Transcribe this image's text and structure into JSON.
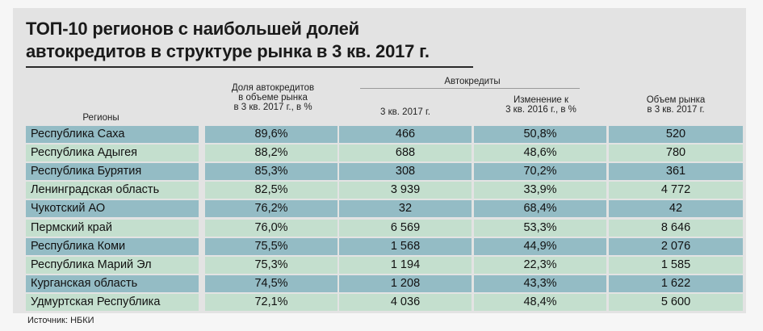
{
  "title_line1": "ТОП-10 регионов с наибольшей долей",
  "title_line2": "автокредитов в структуре рынка в 3 кв. 2017 г.",
  "headers": {
    "regions": "Регионы",
    "share": [
      "Доля автокредитов",
      "в объеме рынка",
      "в 3 кв. 2017 г., в %"
    ],
    "autocredits": "Автокредиты",
    "q3": "3 кв. 2017 г.",
    "change": [
      "Изменение к",
      "3 кв. 2016 г., в %"
    ],
    "market": [
      "Объем рынка",
      "в 3 кв. 2017 г."
    ]
  },
  "rows": [
    {
      "region": "Республика Саха",
      "share": "89,6%",
      "q3": "466",
      "change": "50,8%",
      "market": "520"
    },
    {
      "region": "Республика Адыгея",
      "share": "88,2%",
      "q3": "688",
      "change": "48,6%",
      "market": "780"
    },
    {
      "region": "Республика Бурятия",
      "share": "85,3%",
      "q3": "308",
      "change": "70,2%",
      "market": "361"
    },
    {
      "region": "Ленинградская область",
      "share": "82,5%",
      "q3": "3 939",
      "change": "33,9%",
      "market": "4 772"
    },
    {
      "region": "Чукотский АО",
      "share": "76,2%",
      "q3": "32",
      "change": "68,4%",
      "market": "42"
    },
    {
      "region": "Пермский край",
      "share": "76,0%",
      "q3": "6 569",
      "change": "53,3%",
      "market": "8 646"
    },
    {
      "region": "Республика Коми",
      "share": "75,5%",
      "q3": "1 568",
      "change": "44,9%",
      "market": "2 076"
    },
    {
      "region": "Республика Марий Эл",
      "share": "75,3%",
      "q3": "1 194",
      "change": "22,3%",
      "market": "1 585"
    },
    {
      "region": "Курганская область",
      "share": "74,5%",
      "q3": "1 208",
      "change": "43,3%",
      "market": "1 622"
    },
    {
      "region": "Удмуртская Республика",
      "share": "72,1%",
      "q3": "4 036",
      "change": "48,4%",
      "market": "5 600"
    }
  ],
  "source": "Источник: НБКИ",
  "colors": {
    "row_odd": "#94bcc5",
    "row_even": "#c4dfce",
    "background": "#e3e3e3"
  }
}
